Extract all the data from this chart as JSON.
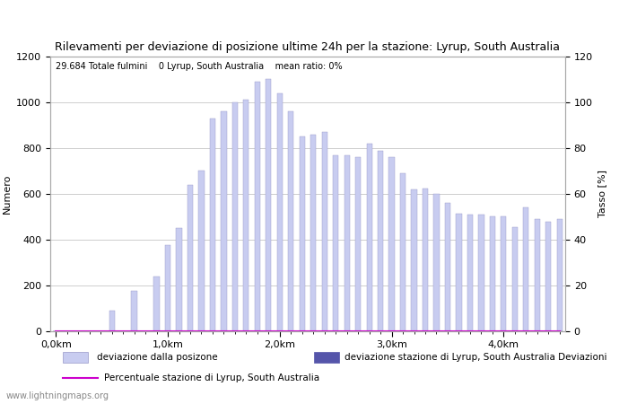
{
  "title": "Rilevamenti per deviazione di posizione ultime 24h per la stazione: Lyrup, South Australia",
  "subtitle": "29.684 Totale fulmini    0 Lyrup, South Australia    mean ratio: 0%",
  "ylabel_left": "Numero",
  "ylabel_right": "Tasso [%]",
  "watermark": "www.lightningmaps.org",
  "bar_color": "#c8ccf0",
  "bar_edge_color": "#9898c8",
  "line_color": "#cc00cc",
  "station_bar_color": "#5555aa",
  "ylim_left": [
    0,
    1200
  ],
  "ylim_right": [
    0,
    120
  ],
  "yticks_left": [
    0,
    200,
    400,
    600,
    800,
    1000,
    1200
  ],
  "yticks_right": [
    0,
    20,
    40,
    60,
    80,
    100,
    120
  ],
  "xtick_labels": [
    "0,0km",
    "1,0km",
    "2,0km",
    "3,0km",
    "4,0km"
  ],
  "xtick_positions": [
    0,
    10,
    20,
    30,
    40
  ],
  "bar_values": [
    0,
    0,
    0,
    0,
    0,
    90,
    0,
    175,
    0,
    240,
    375,
    450,
    640,
    700,
    930,
    960,
    1000,
    1010,
    1090,
    1100,
    1040,
    960,
    850,
    860,
    870,
    770,
    770,
    760,
    820,
    790,
    760,
    690,
    620,
    625,
    600,
    560,
    515,
    510,
    510,
    500,
    500,
    455,
    540,
    490,
    480,
    490
  ],
  "station_values": [
    0,
    0,
    0,
    0,
    0,
    0,
    0,
    0,
    0,
    0,
    0,
    0,
    0,
    0,
    0,
    0,
    0,
    0,
    0,
    0,
    0,
    0,
    0,
    0,
    0,
    0,
    0,
    0,
    0,
    0,
    0,
    0,
    0,
    0,
    0,
    0,
    0,
    0,
    0,
    0,
    0,
    0,
    0,
    0,
    0,
    0
  ],
  "ratio_values": [
    0,
    0,
    0,
    0,
    0,
    0,
    0,
    0,
    0,
    0,
    0,
    0,
    0,
    0,
    0,
    0,
    0,
    0,
    0,
    0,
    0,
    0,
    0,
    0,
    0,
    0,
    0,
    0,
    0,
    0,
    0,
    0,
    0,
    0,
    0,
    0,
    0,
    0,
    0,
    0,
    0,
    0,
    0,
    0,
    0,
    0
  ],
  "legend": {
    "light_bar_label": "deviazione dalla posizone",
    "station_bar_label": "deviazione stazione di Lyrup, South Australia",
    "line_label": "Percentuale stazione di Lyrup, South Australia",
    "deviazioni_label": "Deviazioni"
  },
  "background_color": "#ffffff",
  "grid_color": "#bbbbbb",
  "n_bars": 46,
  "bar_width": 0.5,
  "title_fontsize": 9,
  "axis_fontsize": 8,
  "tick_fontsize": 8
}
